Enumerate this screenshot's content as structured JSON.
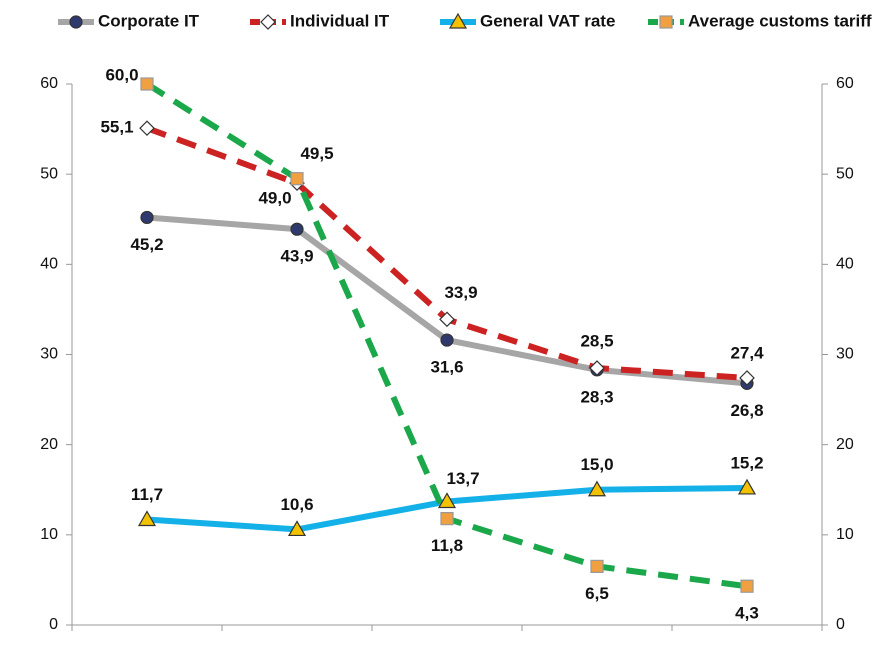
{
  "chart_data": {
    "type": "line",
    "categories": [
      null,
      null,
      null,
      null,
      null
    ],
    "series": [
      {
        "name": "Corporate IT",
        "color": "#a6a6a6",
        "marker_color": "#2e3a6e",
        "marker": "circle",
        "dash": false,
        "values": [
          45.2,
          43.9,
          31.6,
          28.3,
          26.8
        ],
        "value_labels": [
          "45,2",
          "43,9",
          "31,6",
          "28,3",
          "26,8"
        ]
      },
      {
        "name": "Individual IT",
        "color": "#cc2222",
        "marker_color": "#ffffff",
        "marker": "diamond",
        "dash": true,
        "values": [
          55.1,
          49.0,
          33.9,
          28.5,
          27.4
        ],
        "value_labels": [
          "55,1",
          "49,0",
          "33,9",
          "28,5",
          "27,4"
        ]
      },
      {
        "name": "General VAT rate",
        "color": "#14b0e8",
        "marker_color": "#f2c200",
        "marker": "triangle",
        "dash": false,
        "values": [
          11.7,
          10.6,
          13.7,
          15.0,
          15.2
        ],
        "value_labels": [
          "11,7",
          "10,6",
          "13,7",
          "15,0",
          "15,2"
        ]
      },
      {
        "name": "Average customs tariff",
        "color": "#1aa84a",
        "marker_color": "#f0a040",
        "marker": "square",
        "dash": true,
        "values": [
          60.0,
          49.5,
          11.8,
          6.5,
          4.3
        ],
        "value_labels": [
          "60,0",
          "49,5",
          "11,8",
          "6,5",
          "4,3"
        ]
      }
    ],
    "ylim": [
      0,
      60
    ],
    "yticks": [
      0,
      10,
      20,
      30,
      40,
      50,
      60
    ],
    "y2lim": [
      0,
      60
    ],
    "y2ticks": [
      0,
      10,
      20,
      30,
      40,
      50,
      60
    ],
    "legend": "top",
    "grid": false
  }
}
